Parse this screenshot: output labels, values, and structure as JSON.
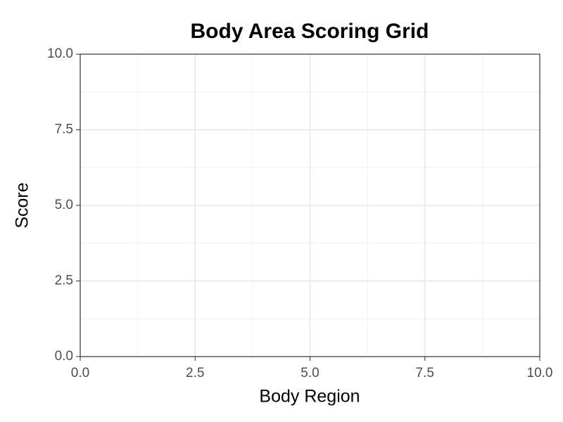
{
  "chart_data": {
    "type": "scatter",
    "title": "Body Area Scoring Grid",
    "x_label": "Body Region",
    "y_label": "Score",
    "xlim": [
      0,
      10
    ],
    "ylim": [
      0,
      10
    ],
    "xticks": [
      {
        "value": 0,
        "label": "0.0"
      },
      2.5,
      {
        "value": 5,
        "label": "5.0"
      },
      7.5,
      {
        "value": 10,
        "label": "10.0"
      }
    ],
    "yticks": [
      {
        "value": 0,
        "label": "0.0"
      },
      2.5,
      {
        "value": 5,
        "label": "5.0"
      },
      7.5,
      {
        "value": 10,
        "label": "10.0"
      }
    ],
    "grid": true,
    "minor_grid": true
  }
}
